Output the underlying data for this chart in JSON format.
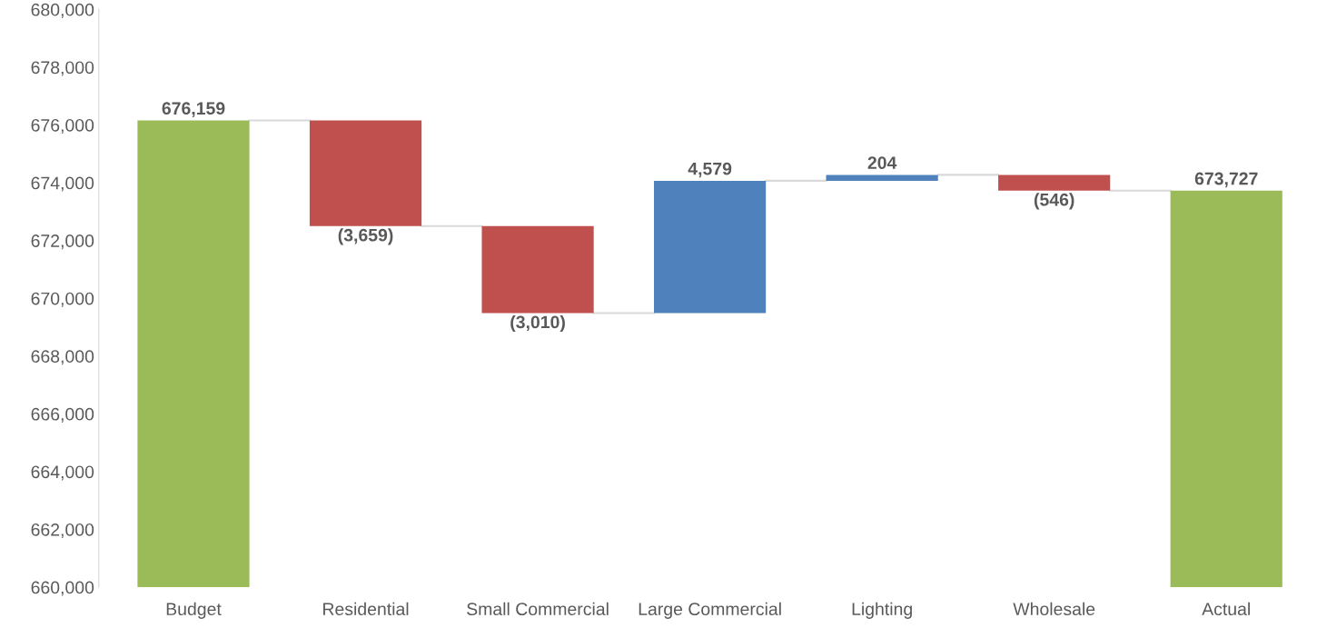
{
  "chart_data": {
    "type": "bar",
    "categories": [
      "Budget",
      "Residential",
      "Small Commercial",
      "Large Commercial",
      "Lighting",
      "Wholesale",
      "Actual"
    ],
    "base": [
      660000,
      676159,
      672500,
      669490,
      674069,
      674273,
      660000
    ],
    "values": [
      16159,
      -3659,
      -3010,
      4579,
      204,
      -546,
      13727
    ],
    "value_labels": [
      "676,159",
      "(3,659)",
      "(3,010)",
      "4,579",
      "204",
      "(546)",
      "673,727"
    ],
    "colors": [
      "#9bbb59",
      "#c0504d",
      "#c0504d",
      "#4f81bd",
      "#4f81bd",
      "#c0504d",
      "#9bbb59"
    ],
    "ylim": [
      660000,
      680000
    ],
    "yticks": [
      {
        "value": 660000,
        "label": "660,000"
      },
      {
        "value": 662000,
        "label": "662,000"
      },
      {
        "value": 664000,
        "label": "664,000"
      },
      {
        "value": 666000,
        "label": "666,000"
      },
      {
        "value": 668000,
        "label": "668,000"
      },
      {
        "value": 670000,
        "label": "670,000"
      },
      {
        "value": 672000,
        "label": "672,000"
      },
      {
        "value": 674000,
        "label": "674,000"
      },
      {
        "value": 676000,
        "label": "676,000"
      },
      {
        "value": 678000,
        "label": "678,000"
      },
      {
        "value": 680000,
        "label": "680,000"
      }
    ],
    "grid": false,
    "legend": false
  }
}
